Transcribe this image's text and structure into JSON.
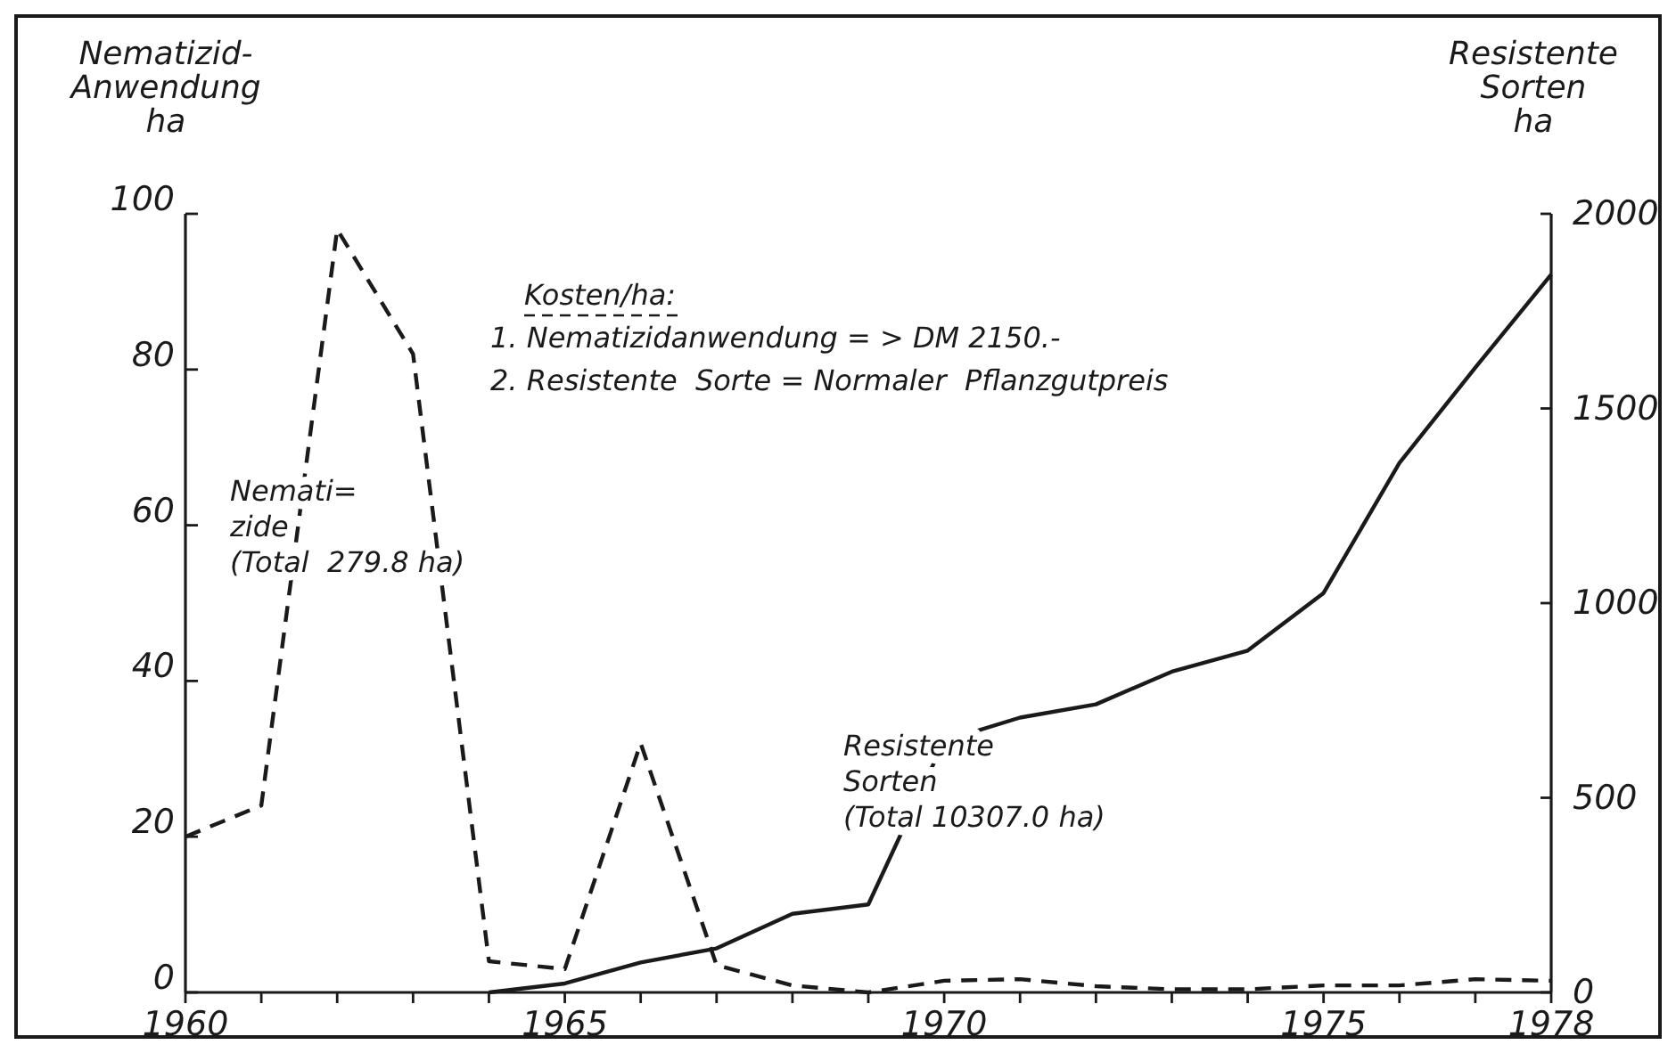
{
  "chart_data": {
    "type": "line",
    "ylabel": "Nematizid-\nAnwendung\nha",
    "y2label": "Resistente\nSorten\nha",
    "x": [
      1960,
      1961,
      1962,
      1963,
      1964,
      1965,
      1966,
      1967,
      1968,
      1969,
      1970,
      1971,
      1972,
      1973,
      1974,
      1975,
      1976,
      1977,
      1978
    ],
    "xlim": [
      1960,
      1978
    ],
    "xticks": [
      1960,
      {
        "value": 1961,
        "label": null
      },
      {
        "value": 1962,
        "label": null
      },
      {
        "value": 1963,
        "label": null
      },
      {
        "value": 1964,
        "label": null
      },
      1965,
      {
        "value": 1966,
        "label": null
      },
      {
        "value": 1967,
        "label": null
      },
      {
        "value": 1968,
        "label": null
      },
      {
        "value": 1969,
        "label": null
      },
      1970,
      {
        "value": 1971,
        "label": null
      },
      {
        "value": 1972,
        "label": null
      },
      {
        "value": 1973,
        "label": null
      },
      {
        "value": 1974,
        "label": null
      },
      1975,
      {
        "value": 1976,
        "label": null
      },
      {
        "value": 1977,
        "label": null
      },
      1978
    ],
    "ylim": [
      0,
      100
    ],
    "yticks": [
      0,
      20,
      40,
      60,
      80,
      100
    ],
    "y2lim": [
      0,
      2000
    ],
    "y2ticks": [
      0,
      500,
      1000,
      1500,
      2000
    ],
    "series": [
      {
        "name": "Nemati=\nzide\n(Total  279.8 ha)",
        "color": "#1a1a1a",
        "line_style": "dashed",
        "values": [
          20,
          24,
          98,
          82,
          4,
          3,
          32,
          3.5,
          0.9,
          0,
          1.5,
          1.7,
          0.8,
          0.4,
          0.4,
          0.9,
          0.9,
          1.7,
          1.5
        ]
      },
      {
        "name": "Resistente\nSorten\n(Total 10307.0 ha)",
        "color": "#1a1a1a",
        "line_style": "solid",
        "axis": "y2",
        "x": [
          1964,
          1965,
          1966,
          1967,
          1968,
          1969,
          1970,
          1971,
          1972,
          1973,
          1974,
          1975,
          1976,
          1977,
          1978
        ],
        "values": [
          0,
          23,
          77,
          113,
          202,
          226,
          646,
          706,
          740,
          824,
          878,
          1026,
          1360,
          1605,
          1844
        ]
      }
    ],
    "annotations": [
      "Kosten/ha:",
      "1. Nematizidanwendung = > DM 2150.-",
      "2. Resistente  Sorte = Normaler  Pflanzgutpreis"
    ],
    "grid": false,
    "marker": "none"
  }
}
